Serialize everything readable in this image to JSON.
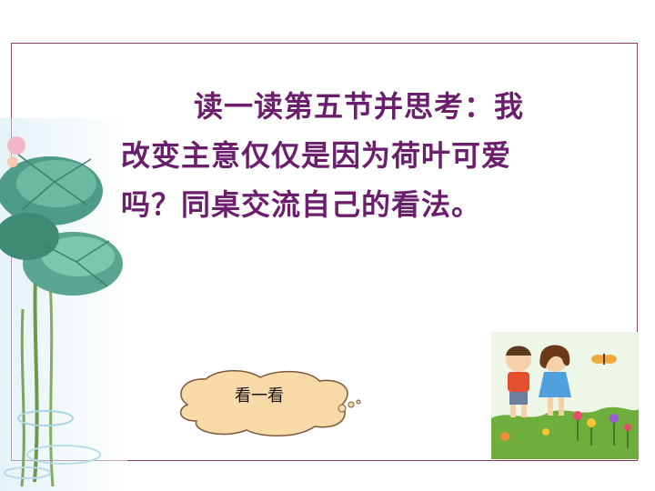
{
  "slide": {
    "prompt_lines": [
      "读一读第五节并思考：我",
      "改变主意仅仅是因为荷叶可爱",
      "吗？同桌交流自己的看法。"
    ],
    "button_label": "看一看",
    "colors": {
      "frame": "#8a3f6a",
      "prompt_text": "#6b1e6b",
      "cloud_fill": "#f8d9a8",
      "cloud_stroke": "#7a5a3a"
    },
    "illustrations": {
      "left": "lotus-leaves-illustration",
      "bottom_right": "children-and-flowers-illustration"
    }
  }
}
